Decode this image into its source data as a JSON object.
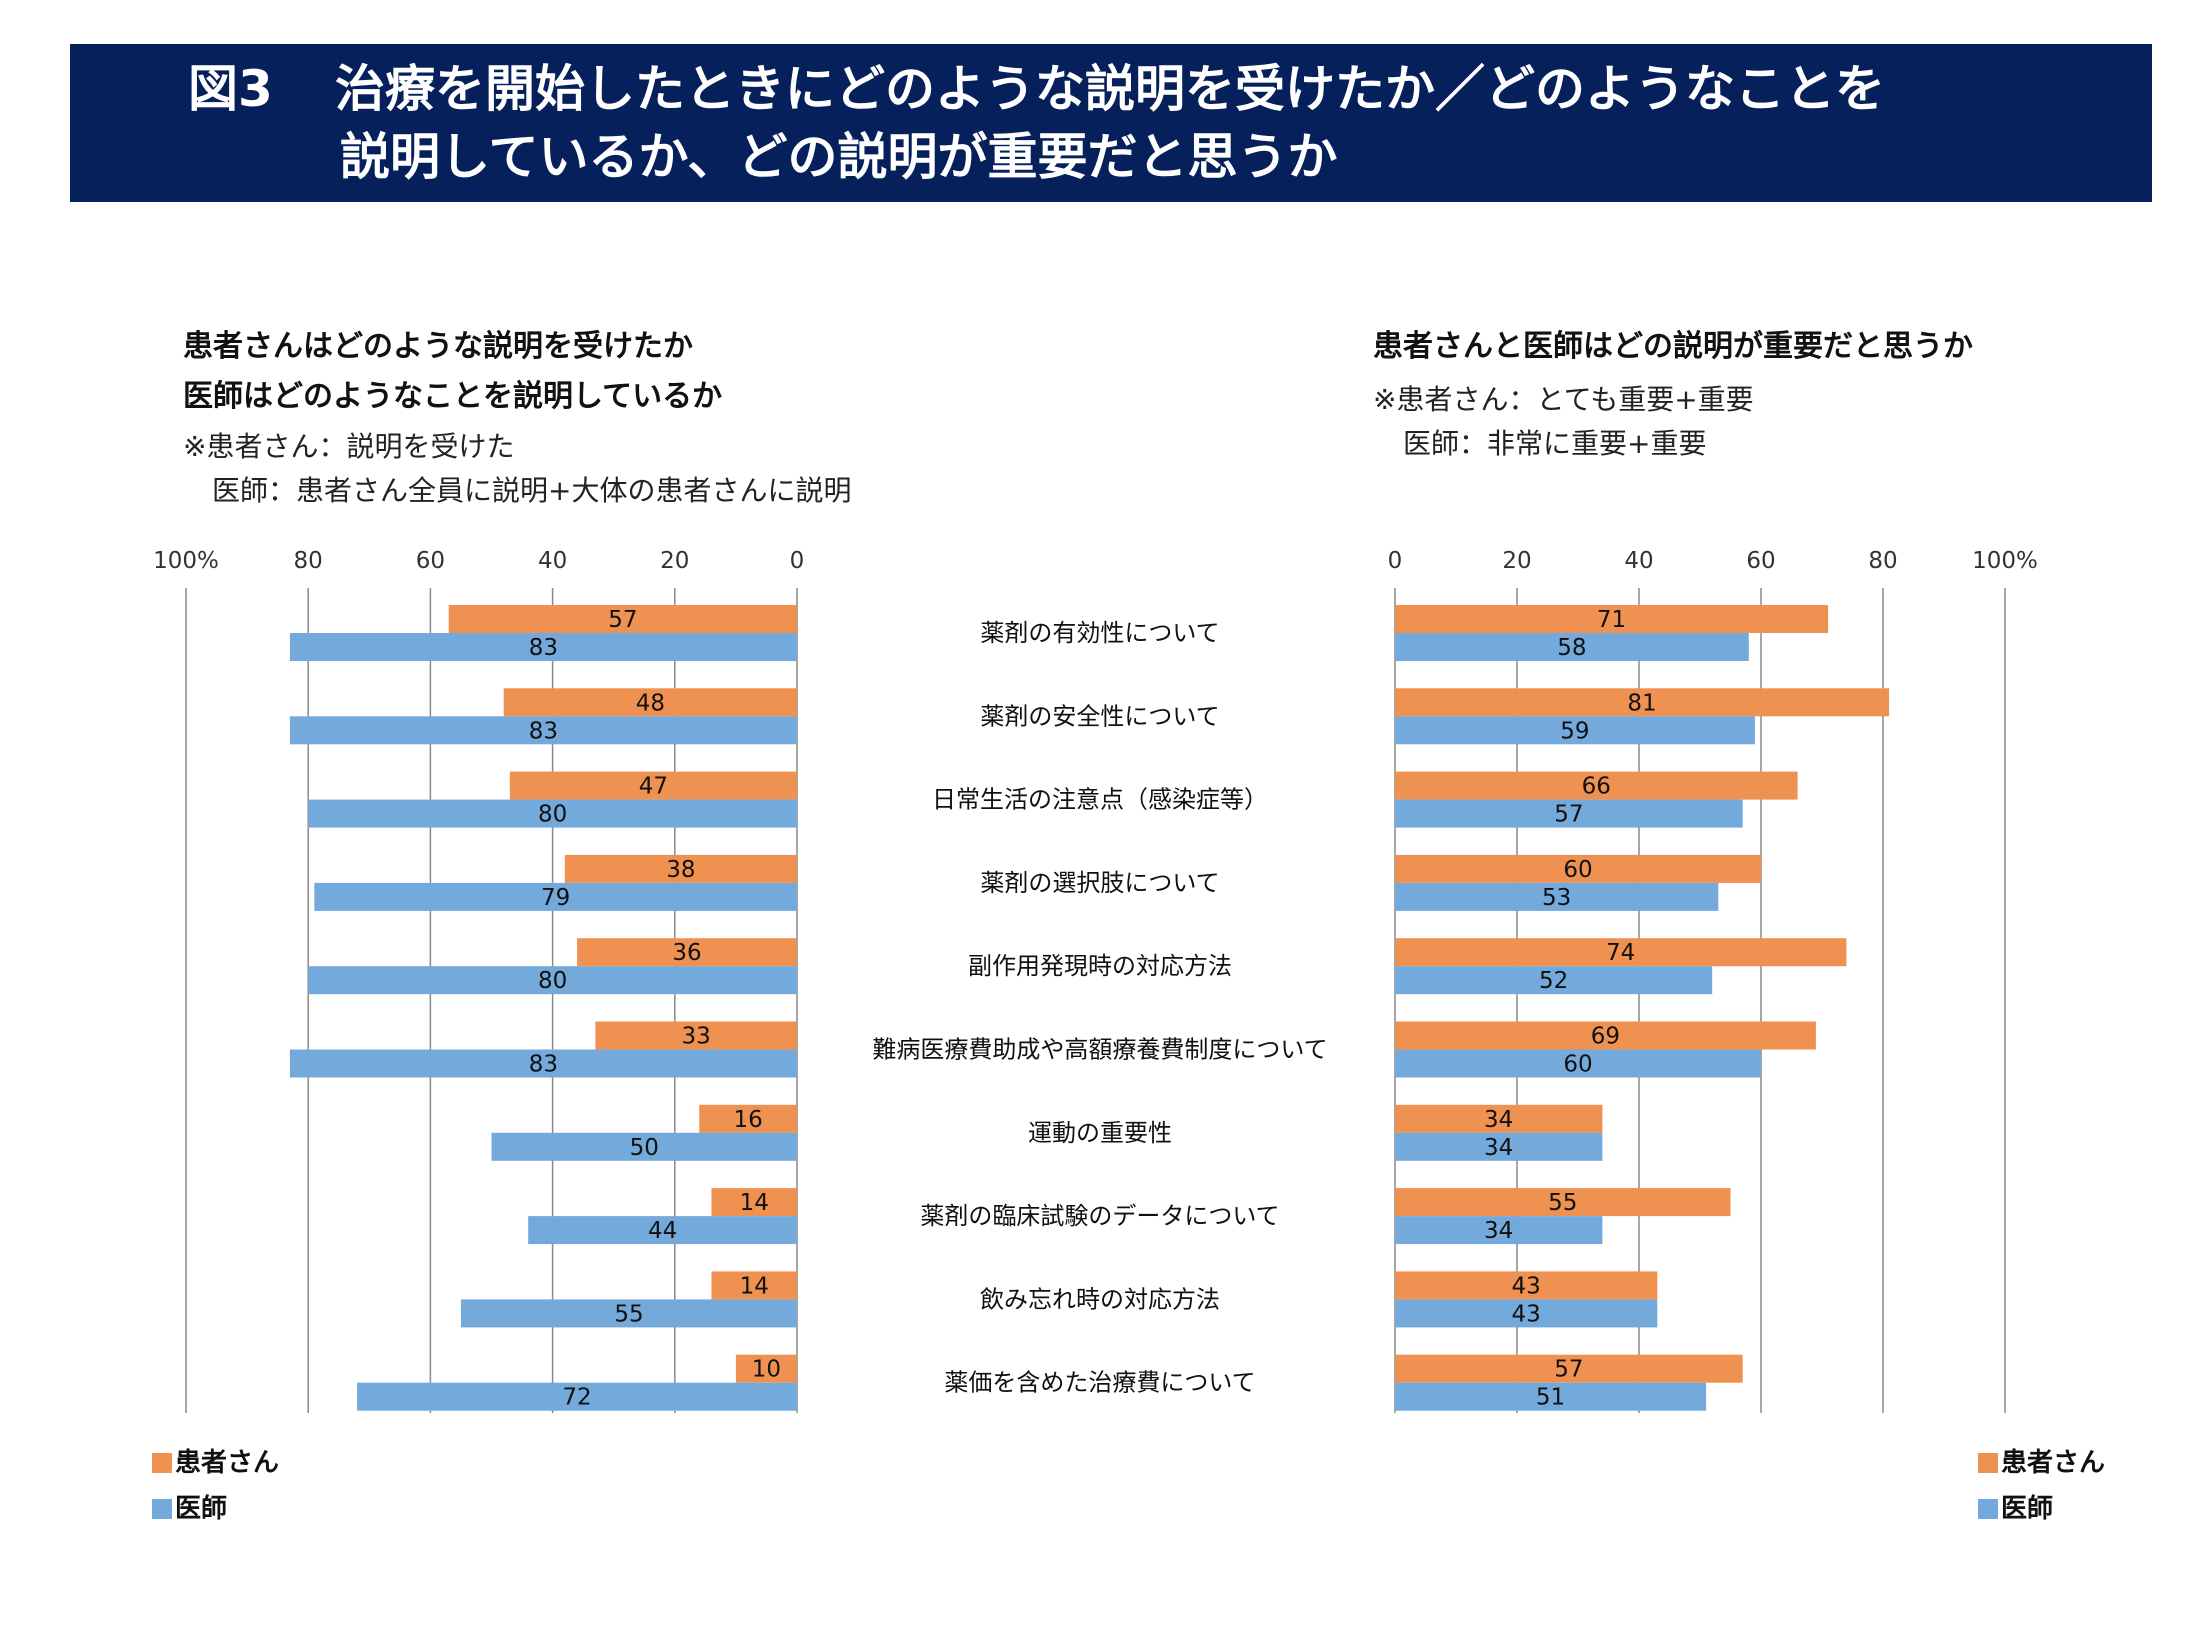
{
  "banner": {
    "figure_label": "図3",
    "title_line1": "治療を開始したときにどのような説明を受けたか／どのようなことを",
    "title_line2": "説明しているか、どの説明が重要だと思うか",
    "background_color": "#06205c"
  },
  "colors": {
    "patient": "#ef9150",
    "doctor": "#74a9db",
    "grid": "#8a8a8a"
  },
  "chart_data": [
    {
      "type": "bar",
      "orientation": "horizontal",
      "direction": "right-to-left",
      "title": "患者さんはどのような説明を受けたか",
      "title_line2": "医師はどのようなことを説明しているか",
      "notes": [
        "※患者さん：説明を受けた",
        "医師：患者さん全員に説明+大体の患者さんに説明"
      ],
      "xlabel": "",
      "ylabel": "",
      "xlim": [
        0,
        100
      ],
      "x_ticks": [
        "100%",
        "80",
        "60",
        "40",
        "20",
        "0"
      ],
      "grid": true,
      "legend_position": "bottom-left",
      "categories": [
        "薬剤の有効性について",
        "薬剤の安全性について",
        "日常生活の注意点（感染症等）",
        "薬剤の選択肢について",
        "副作用発現時の対応方法",
        "難病医療費助成や高額療養費制度について",
        "運動の重要性",
        "薬剤の臨床試験のデータについて",
        "飲み忘れ時の対応方法",
        "薬価を含めた治療費について"
      ],
      "series": [
        {
          "name": "患者さん",
          "values": [
            57,
            48,
            47,
            38,
            36,
            33,
            16,
            14,
            14,
            10
          ]
        },
        {
          "name": "医師",
          "values": [
            83,
            83,
            80,
            79,
            80,
            83,
            50,
            44,
            55,
            72
          ]
        }
      ]
    },
    {
      "type": "bar",
      "orientation": "horizontal",
      "direction": "left-to-right",
      "title": "患者さんと医師はどの説明が重要だと思うか",
      "notes": [
        "※患者さん：とても重要+重要",
        "医師：非常に重要+重要"
      ],
      "xlabel": "",
      "ylabel": "",
      "xlim": [
        0,
        100
      ],
      "x_ticks": [
        "0",
        "20",
        "40",
        "60",
        "80",
        "100%"
      ],
      "grid": true,
      "legend_position": "bottom-right",
      "categories": [
        "薬剤の有効性について",
        "薬剤の安全性について",
        "日常生活の注意点（感染症等）",
        "薬剤の選択肢について",
        "副作用発現時の対応方法",
        "難病医療費助成や高額療養費制度について",
        "運動の重要性",
        "薬剤の臨床試験のデータについて",
        "飲み忘れ時の対応方法",
        "薬価を含めた治療費について"
      ],
      "series": [
        {
          "name": "患者さん",
          "values": [
            71,
            81,
            66,
            60,
            74,
            69,
            34,
            55,
            43,
            57
          ]
        },
        {
          "name": "医師",
          "values": [
            58,
            59,
            57,
            53,
            52,
            60,
            34,
            34,
            43,
            51
          ]
        }
      ]
    }
  ],
  "legend": {
    "patient_label": "患者さん",
    "doctor_label": "医師"
  }
}
